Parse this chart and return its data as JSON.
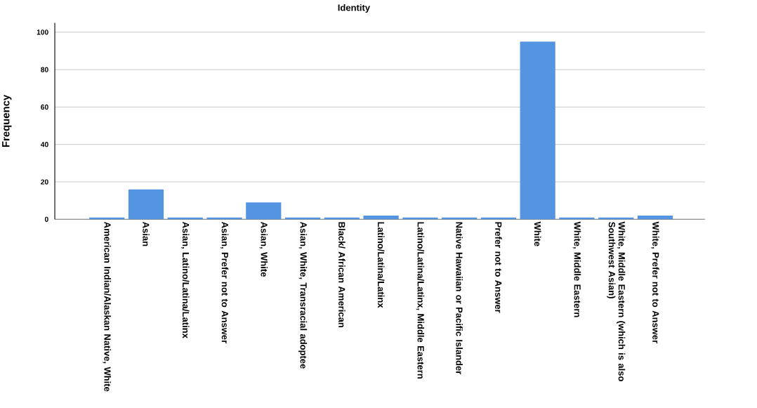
{
  "chart_data": {
    "type": "bar",
    "title": "Identity",
    "ylabel": "Frequency",
    "categories": [
      "American Indian/Alaskan Native, White",
      "Asian",
      "Asian, Latino/Latina/Latinx",
      "Asian, Prefer not to Answer",
      "Asian, White",
      "Asian, White, Transracial adoptee",
      "Black/ African American",
      "Latino/Latina/Latinx",
      "Latino/Latina/Latinx, Middle Eastern",
      "Native Hawaiian or Pacific Islander",
      "Prefer not to Answer",
      "White",
      "White, Middle Eastern",
      "White, Middle Eastern (which is also Southwest Asian)",
      "White, Prefer not to Answer"
    ],
    "values": [
      1,
      16,
      1,
      1,
      9,
      1,
      1,
      2,
      1,
      1,
      1,
      95,
      1,
      1,
      2
    ],
    "color": "#5594e0",
    "ylim": [
      0,
      105
    ],
    "yticks": [
      0,
      20,
      40,
      60,
      80,
      100
    ],
    "grid": "y"
  }
}
